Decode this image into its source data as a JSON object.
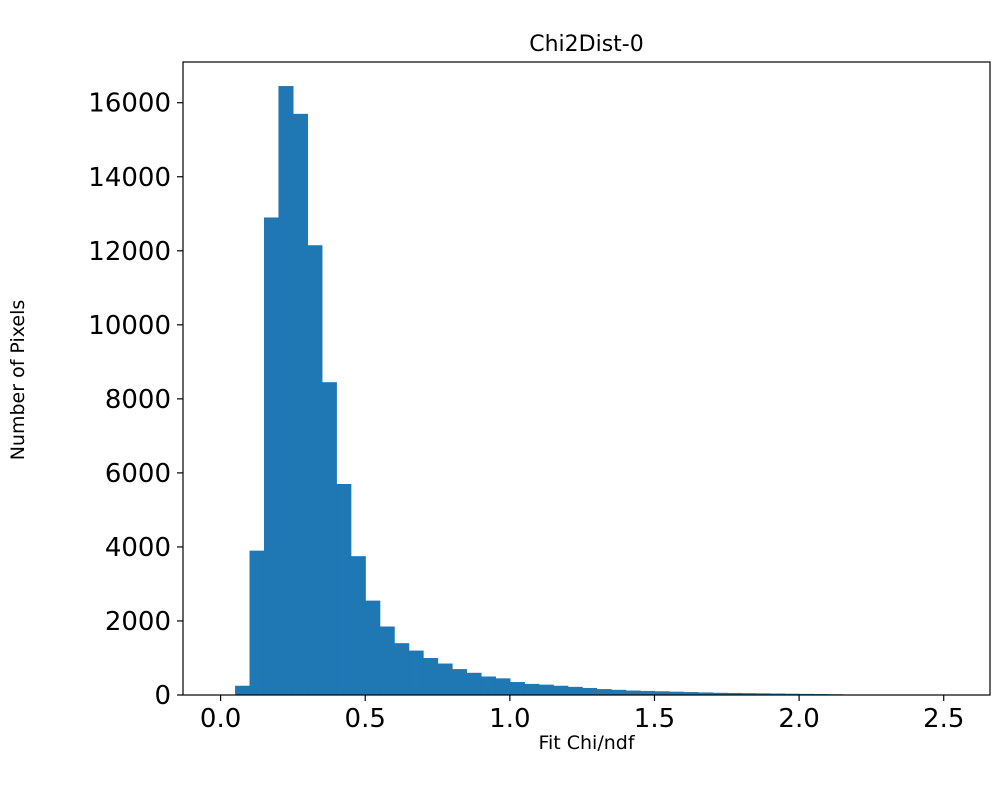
{
  "figure": {
    "title": "Chi2Dist-0",
    "xlabel": "Fit Chi/ndf",
    "ylabel": "Number of Pixels"
  },
  "chart_data": {
    "type": "bar",
    "title": "Chi2Dist-0",
    "xlabel": "Fit Chi/ndf",
    "ylabel": "Number of Pixels",
    "bar_color": "#1f77b4",
    "grid": false,
    "legend": false,
    "bin_start": 0.05,
    "bin_width": 0.05,
    "counts": [
      250,
      3900,
      12900,
      16450,
      15700,
      12150,
      8450,
      5700,
      3750,
      2550,
      1850,
      1400,
      1200,
      1000,
      850,
      700,
      600,
      500,
      450,
      350,
      300,
      280,
      250,
      220,
      190,
      160,
      140,
      120,
      110,
      100,
      90,
      80,
      70,
      60,
      55,
      50,
      45,
      40,
      35,
      30,
      25,
      20
    ],
    "xlim": [
      -0.13,
      2.66
    ],
    "ylim": [
      0,
      17100
    ],
    "xticks": [
      "0.0",
      "0.5",
      "1.0",
      "1.5",
      "2.0",
      "2.5"
    ],
    "xtick_values": [
      0.0,
      0.5,
      1.0,
      1.5,
      2.0,
      2.5
    ],
    "yticks": [
      "0",
      "2000",
      "4000",
      "6000",
      "8000",
      "10000",
      "12000",
      "14000",
      "16000"
    ],
    "ytick_values": [
      0,
      2000,
      4000,
      6000,
      8000,
      10000,
      12000,
      14000,
      16000
    ]
  }
}
